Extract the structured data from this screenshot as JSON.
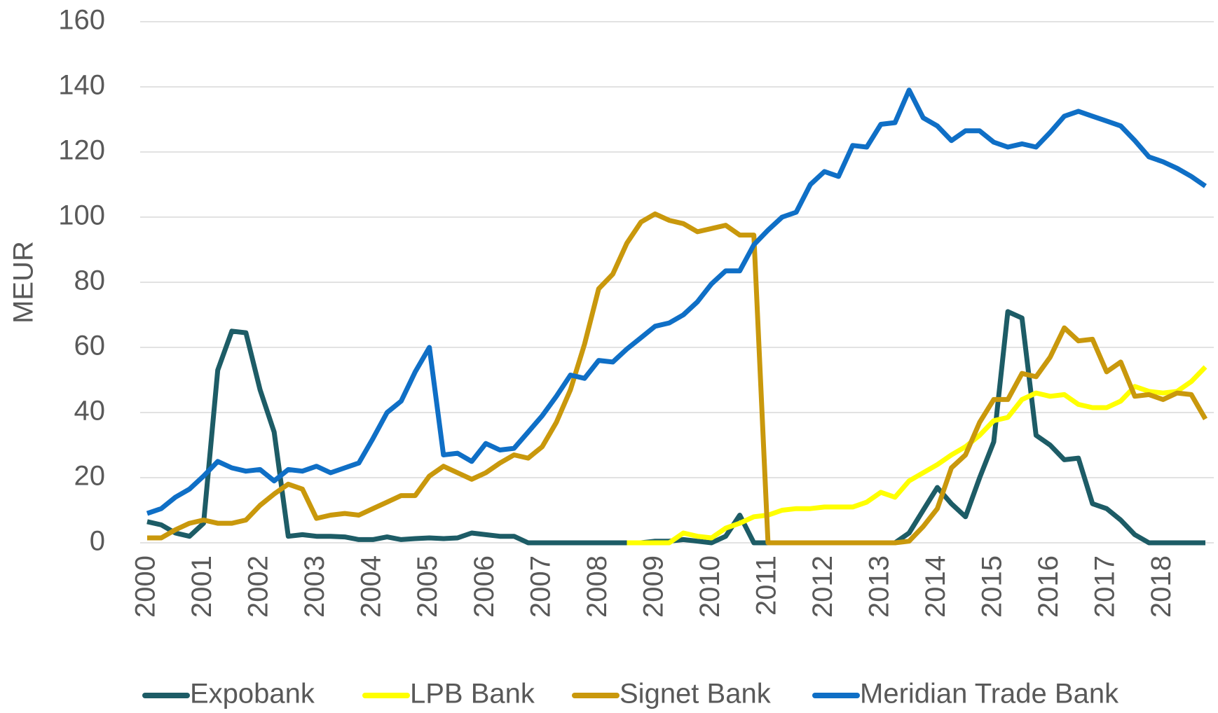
{
  "chart_data": {
    "type": "line",
    "y_label": "MEUR",
    "categories": [
      "2000",
      null,
      null,
      null,
      "2001",
      null,
      null,
      null,
      "2002",
      null,
      null,
      null,
      "2003",
      null,
      null,
      null,
      "2004",
      null,
      null,
      null,
      "2005",
      null,
      null,
      null,
      "2006",
      null,
      null,
      null,
      "2007",
      null,
      null,
      null,
      "2008",
      null,
      null,
      null,
      "2009",
      null,
      null,
      null,
      "2010",
      null,
      null,
      null,
      "2011",
      null,
      null,
      null,
      "2012",
      null,
      null,
      null,
      "2013",
      null,
      null,
      null,
      "2014",
      null,
      null,
      null,
      "2015",
      null,
      null,
      null,
      "2016",
      null,
      null,
      null,
      "2017",
      null,
      null,
      null,
      "2018",
      null,
      null,
      null
    ],
    "series": [
      {
        "name": "Expobank",
        "color": "#1d5c66",
        "values": [
          6.5,
          5.5,
          3,
          2,
          6,
          53,
          65,
          64.5,
          47,
          34,
          2,
          2.5,
          2,
          2,
          1.8,
          1,
          1,
          1.8,
          1,
          1.3,
          1.5,
          1.3,
          1.5,
          3,
          2.5,
          2,
          2,
          0,
          0,
          0,
          0,
          0,
          0,
          0,
          0,
          0,
          0.5,
          0.5,
          1,
          0.5,
          0,
          2,
          8.5,
          0,
          0,
          0,
          0,
          0,
          0,
          0,
          0,
          0,
          0,
          0,
          3,
          10,
          17,
          12,
          8,
          20,
          31,
          71,
          69,
          33,
          30,
          25.5,
          26,
          12,
          10.5,
          7,
          2.5,
          0,
          0,
          0,
          0,
          0
        ]
      },
      {
        "name": "LPB Bank",
        "color": "#ffff00",
        "values": [
          null,
          null,
          null,
          null,
          null,
          null,
          null,
          null,
          null,
          null,
          null,
          null,
          null,
          null,
          null,
          null,
          null,
          null,
          null,
          null,
          null,
          null,
          null,
          null,
          null,
          null,
          null,
          null,
          null,
          null,
          null,
          null,
          null,
          null,
          0,
          0,
          0,
          0,
          3,
          2,
          1.5,
          4.5,
          6,
          8,
          8.5,
          10,
          10.5,
          10.5,
          11,
          11,
          11,
          12.5,
          15.5,
          14,
          19,
          21.5,
          24,
          27,
          29.5,
          33,
          37.5,
          38.5,
          44,
          46,
          45,
          45.5,
          42.5,
          41.5,
          41.5,
          43.5,
          48,
          46.5,
          46,
          46.5,
          49.5,
          54
        ]
      },
      {
        "name": "Signet Bank",
        "color": "#c9980c",
        "values": [
          1.5,
          1.5,
          4,
          6,
          7,
          6,
          6,
          7,
          11.5,
          15,
          18,
          16.5,
          7.5,
          8.5,
          9,
          8.5,
          10.5,
          12.5,
          14.5,
          14.5,
          20.5,
          23.5,
          21.5,
          19.5,
          21.5,
          24.5,
          27,
          26,
          29.5,
          37,
          47,
          61,
          78,
          82.5,
          92,
          98.5,
          101,
          99,
          98,
          95.5,
          96.5,
          97.5,
          94.5,
          94.5,
          0,
          0,
          0,
          0,
          0,
          0,
          0,
          0,
          0,
          0,
          0.5,
          5,
          10.5,
          23,
          27,
          37,
          44,
          44,
          52,
          51,
          57,
          66,
          62,
          62.5,
          52.5,
          55.5,
          45,
          45.5,
          44,
          46,
          45.5,
          38
        ]
      },
      {
        "name": "Meridian Trade Bank",
        "color": "#0f6fc6",
        "values": [
          9,
          10.5,
          14,
          16.5,
          20.5,
          25,
          23,
          22,
          22.5,
          19,
          22.5,
          22,
          23.5,
          21.5,
          23,
          24.5,
          32,
          40,
          43.5,
          52.5,
          60,
          27,
          27.5,
          25,
          30.5,
          28.5,
          29,
          34,
          39,
          45,
          51.5,
          50.5,
          56,
          55.5,
          59.5,
          63,
          66.5,
          67.5,
          70,
          74,
          79.5,
          83.5,
          83.5,
          91.5,
          96,
          100,
          101.5,
          110,
          114,
          112.5,
          122,
          121.5,
          128.5,
          129,
          139,
          130.5,
          128,
          123.5,
          126.5,
          126.5,
          123,
          121.5,
          122.5,
          121.5,
          126,
          131,
          132.5,
          131,
          129.5,
          128,
          123.5,
          118.5,
          117,
          115,
          112.5,
          109.5
        ]
      }
    ],
    "ylim": [
      0,
      160
    ],
    "yticks": [
      0,
      20,
      40,
      60,
      80,
      100,
      120,
      140,
      160
    ],
    "grid": true,
    "legend": "bottom"
  }
}
